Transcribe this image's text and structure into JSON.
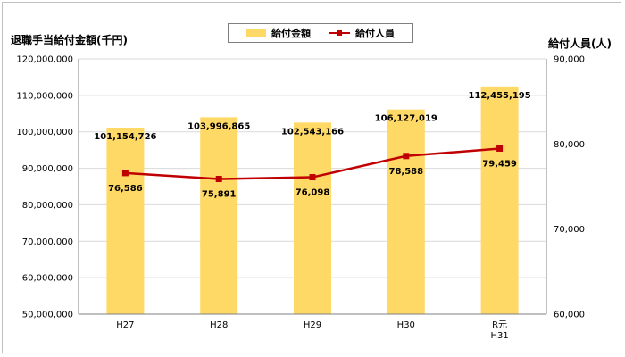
{
  "chart_data": {
    "type": "bar",
    "categories": [
      "H27",
      "H28",
      "H29",
      "H30",
      "R元\nH31"
    ],
    "series": [
      {
        "name": "給付金額",
        "type": "bar",
        "axis": "left",
        "values": [
          101154726,
          103996865,
          102543166,
          106127019,
          112455195
        ],
        "labels": [
          "101,154,726",
          "103,996,865",
          "102,543,166",
          "106,127,019",
          "112,455,195"
        ]
      },
      {
        "name": "給付人員",
        "type": "line",
        "axis": "right",
        "values": [
          76586,
          75891,
          76098,
          78588,
          79459
        ],
        "labels": [
          "76,586",
          "75,891",
          "76,098",
          "78,588",
          "79,459"
        ]
      }
    ],
    "ylabel": "退職手当給付金額(千円)",
    "y2label": "給付人員(人)",
    "ylim": [
      50000000,
      120000000
    ],
    "y2lim": [
      60000,
      90000
    ],
    "yticks": [
      "50,000,000",
      "60,000,000",
      "70,000,000",
      "80,000,000",
      "90,000,000",
      "100,000,000",
      "110,000,000",
      "120,000,000"
    ],
    "y2ticks": [
      "60,000",
      "70,000",
      "80,000",
      "90,000"
    ],
    "grid": true,
    "legend_position": "top",
    "colors": {
      "bar": "#FFD966",
      "line": "#C00000",
      "grid": "#d9d9d9"
    }
  }
}
